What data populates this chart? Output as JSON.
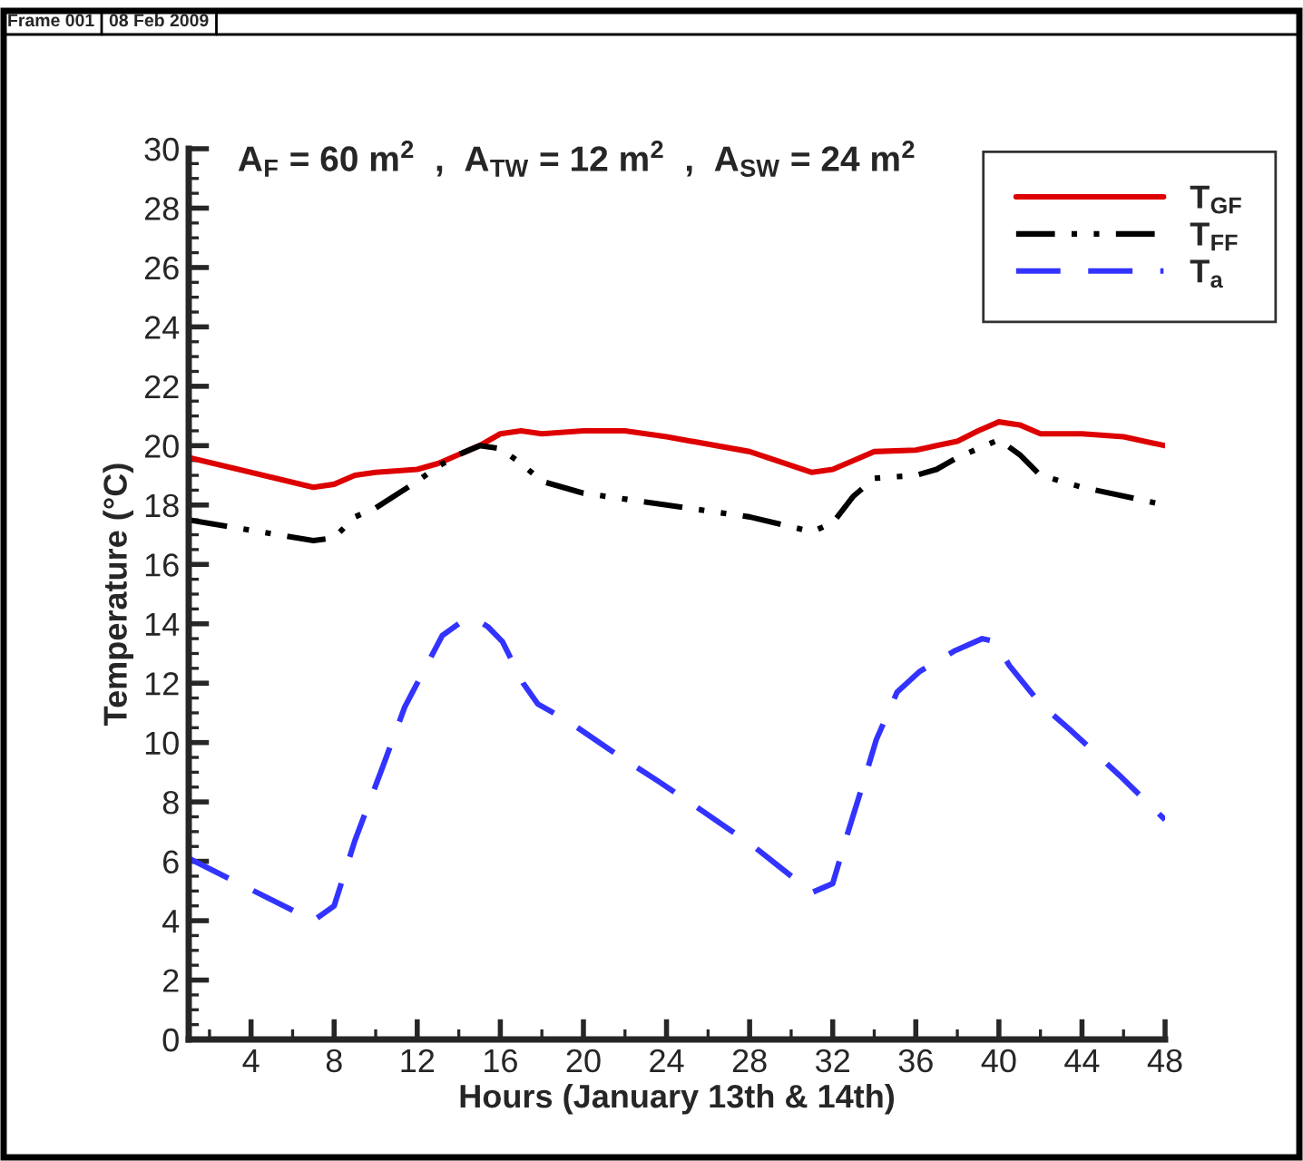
{
  "chart_data": {
    "type": "line",
    "title": "A$_{F}$ = 60 m$^{2}$  ,  A$_{TW}$ = 12 m$^{2}$  ,  A$_{SW}$ = 24 m$^{2}$",
    "xlabel": "Hours (January 13th & 14th)",
    "ylabel": "Temperature (°C)",
    "annotations": [
      "Frame 001",
      "08 Feb 2009"
    ],
    "xlim": [
      1,
      48
    ],
    "xticks": [
      4,
      8,
      12,
      16,
      20,
      24,
      28,
      32,
      36,
      40,
      44,
      48
    ],
    "ylim": [
      0,
      30
    ],
    "yticks": [
      0,
      2,
      4,
      6,
      8,
      10,
      12,
      14,
      16,
      18,
      20,
      22,
      24,
      26,
      28,
      30
    ],
    "grid": false,
    "legend": "top right",
    "marker": "none",
    "series": [
      {
        "name": "T$_{GF}$",
        "color": "#dd0000",
        "line_style": "solid",
        "x": [
          1,
          7,
          8,
          9,
          10,
          12,
          13,
          15,
          16,
          17,
          18,
          20,
          22,
          24,
          28,
          31,
          32,
          33,
          34,
          36,
          37,
          38,
          39,
          40,
          41,
          42,
          44,
          46,
          48
        ],
        "values": [
          19.6,
          18.6,
          18.7,
          19.0,
          19.1,
          19.2,
          19.4,
          20.0,
          20.4,
          20.5,
          20.4,
          20.5,
          20.5,
          20.3,
          19.8,
          19.1,
          19.2,
          19.5,
          19.8,
          19.85,
          20.0,
          20.15,
          20.5,
          20.8,
          20.7,
          20.4,
          20.4,
          20.3,
          20.0
        ]
      },
      {
        "name": "T$_{FF}$",
        "color": "#000000",
        "line_style": "dashdot",
        "x": [
          1,
          7,
          8,
          9,
          10,
          12,
          13,
          14,
          15,
          16,
          17,
          18,
          20,
          24,
          28,
          31,
          32,
          33,
          34,
          36,
          37,
          38,
          40,
          41,
          42,
          44,
          48
        ],
        "values": [
          17.5,
          16.8,
          16.9,
          17.6,
          17.9,
          18.8,
          19.3,
          19.7,
          20.0,
          19.9,
          19.4,
          18.8,
          18.4,
          18.0,
          17.6,
          17.1,
          17.4,
          18.3,
          18.9,
          19.0,
          19.2,
          19.6,
          20.2,
          19.7,
          19.0,
          18.6,
          18.0
        ]
      },
      {
        "name": "T$_{a}$",
        "color": "#3333ff",
        "line_style": "dashed",
        "x": [
          1,
          7,
          8,
          9,
          10.4,
          11.4,
          12.3,
          13.2,
          14.1,
          14.7,
          15.4,
          16.1,
          17.1,
          17.8,
          19.2,
          21.5,
          23.6,
          25.3,
          28.2,
          31,
          32,
          32.7,
          33.5,
          34.1,
          35.1,
          36.2,
          37.9,
          39.2,
          39.8,
          40.5,
          42,
          43.4,
          45.8,
          48
        ],
        "values": [
          6.1,
          4.0,
          4.5,
          6.7,
          9.3,
          11.2,
          12.4,
          13.6,
          14.05,
          14.2,
          13.9,
          13.4,
          12.0,
          11.3,
          10.75,
          9.65,
          8.7,
          7.9,
          6.5,
          4.95,
          5.25,
          6.9,
          8.7,
          10.1,
          11.7,
          12.4,
          13.1,
          13.5,
          13.4,
          12.6,
          11.3,
          10.45,
          8.9,
          7.4
        ]
      }
    ]
  }
}
